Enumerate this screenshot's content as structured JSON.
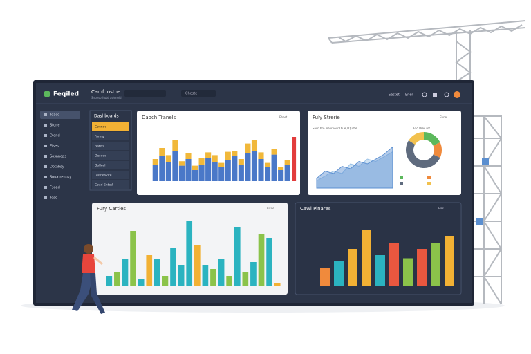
{
  "header": {
    "brand": "Feqiled",
    "title": "Camf Insthe",
    "subtitle": "Snuesoritutd aslenoid",
    "search": "Cheste",
    "user": "Sastet",
    "menu": "Ener"
  },
  "sidebar": [
    "Toacd",
    "Stone",
    "Dlond",
    "Elses",
    "Sosaneps",
    "Dotabsy",
    "Souatrenusy",
    "Fsoad",
    "Toso"
  ],
  "dropdown": {
    "title": "Dashboards",
    "items": [
      "Cbenoe",
      "Fanng",
      "Batlss",
      "Deseed",
      "Dolleel",
      "Dutnesvite",
      "Coad Entetl"
    ]
  },
  "trends": {
    "title": "Daoch Tranels",
    "action": "Ehest",
    "ylim": [
      0,
      100
    ],
    "color": "#4a78c8",
    "top_color": "#f1b83a",
    "values": [
      30,
      45,
      35,
      55,
      28,
      40,
      20,
      30,
      42,
      35,
      25,
      38,
      45,
      30,
      50,
      55,
      40,
      25,
      48,
      20,
      30
    ],
    "tops": [
      10,
      15,
      12,
      20,
      8,
      10,
      8,
      12,
      10,
      12,
      8,
      15,
      10,
      10,
      18,
      20,
      12,
      8,
      10,
      6,
      8
    ],
    "highlight": 80,
    "highlight_color": "#e23c3c"
  },
  "strategies": {
    "title": "Fuly Strerie",
    "action": "Ehne",
    "caption": "Sasn bro ioe irnour Dlue / Quthe",
    "donut_title": "Fad Brec rof",
    "ylim": [
      0,
      100
    ],
    "area": [
      20,
      35,
      30,
      45,
      40,
      55,
      50,
      60,
      70,
      85
    ],
    "area2": [
      15,
      25,
      35,
      30,
      50,
      45,
      60,
      55,
      65,
      75
    ],
    "area_color": "#5b8fd0",
    "area2_color": "#9cc3e8",
    "donut": [
      18,
      14,
      52,
      16
    ],
    "donut_colors": [
      "#5cb85c",
      "#f08a3c",
      "#5f6b7e",
      "#f2c14e"
    ]
  },
  "carties": {
    "title": "Fury Carties",
    "action": "Elsoe",
    "ylim": [
      0,
      100
    ],
    "values": [
      15,
      20,
      40,
      80,
      10,
      45,
      40,
      15,
      55,
      30,
      95,
      60,
      30,
      25,
      40,
      15,
      85,
      20,
      35,
      75,
      70,
      5
    ],
    "colors": [
      "#2bb3c0",
      "#8bc34a",
      "#2bb3c0",
      "#8bc34a",
      "#2bb3c0",
      "#f2b134",
      "#2bb3c0",
      "#8bc34a",
      "#2bb3c0",
      "#2bb3c0",
      "#2bb3c0",
      "#f2b134",
      "#2bb3c0",
      "#8bc34a",
      "#2bb3c0",
      "#8bc34a",
      "#2bb3c0",
      "#8bc34a",
      "#2bb3c0",
      "#8bc34a",
      "#2bb3c0",
      "#f2b134"
    ]
  },
  "pinares": {
    "title": "Cawl Pinares",
    "action": "Elss",
    "ylim": [
      0,
      100
    ],
    "values": [
      30,
      40,
      60,
      90,
      50,
      70,
      45,
      60,
      70,
      80
    ],
    "colors": [
      "#f08a3c",
      "#2bb3c0",
      "#f2b134",
      "#f2b134",
      "#2bb3c0",
      "#e9573f",
      "#8bc34a",
      "#e9573f",
      "#8bc34a",
      "#f2b134"
    ]
  }
}
